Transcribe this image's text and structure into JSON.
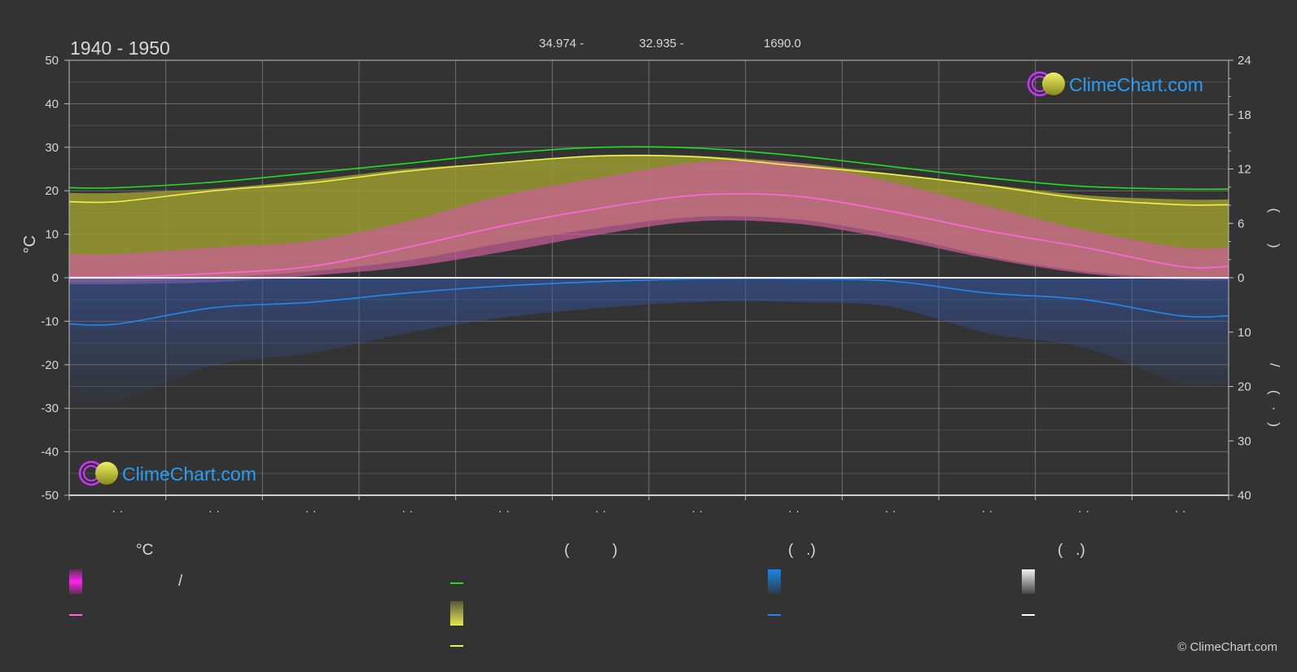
{
  "chart_data": {
    "type": "area",
    "title": "1940 - 1950",
    "header_values": [
      "34.974 -",
      "32.935 -",
      "1690.0"
    ],
    "ylabel": "°C",
    "ylim": [
      -50,
      50
    ],
    "yticks": [
      "50",
      "40",
      "30",
      "20",
      "10",
      "0",
      "-10",
      "-20",
      "-30",
      "-40",
      "-50"
    ],
    "right_axis_top": {
      "range": [
        0,
        24
      ],
      "ticks": [
        "24",
        "18",
        "12",
        "6",
        "0"
      ]
    },
    "right_axis_bottom": {
      "range": [
        0,
        40
      ],
      "ticks": [
        "10",
        "20",
        "30",
        "40"
      ]
    },
    "right_axis_labels": {
      "upper": "(        )",
      "lower": "/      (   ·   )"
    },
    "x_tick_labels": [
      "· ·",
      "· ·",
      "· ·",
      "· ·",
      "· ·",
      "· ·",
      "· ·",
      "· ·",
      "· ·",
      "· ·",
      "· ·",
      "· ·"
    ],
    "grid": true,
    "series": [
      {
        "name": "",
        "color": "#22dd22",
        "values": [
          20.7,
          22.0,
          24.1,
          26.3,
          28.6,
          30.0,
          29.8,
          28.1,
          25.6,
          23.0,
          21.0,
          20.4
        ]
      },
      {
        "name": "",
        "color": "#f0f050",
        "values": [
          17.5,
          20.0,
          21.8,
          24.5,
          26.5,
          28.0,
          27.8,
          25.8,
          23.8,
          21.2,
          18.2,
          16.8
        ]
      },
      {
        "name": "",
        "color": "#ff66dd",
        "values": [
          0.2,
          1.0,
          2.6,
          7.0,
          12.0,
          16.0,
          19.0,
          18.8,
          15.3,
          10.8,
          7.0,
          2.6
        ]
      },
      {
        "name": "",
        "color": "#2288ee",
        "axis": "right_bottom",
        "values": [
          8.5,
          5.5,
          4.5,
          2.8,
          1.5,
          0.7,
          0.2,
          0.2,
          0.6,
          2.8,
          4.0,
          7.0
        ]
      }
    ],
    "bands": [
      {
        "color": "#9a9a30",
        "upper": [
          19.5,
          20.5,
          22.5,
          25.0,
          26.5,
          28.2,
          28.0,
          26.5,
          24.0,
          21.5,
          19.0,
          18.0
        ],
        "lower": [
          -1.0,
          0.0,
          1.5,
          4.0,
          8.0,
          11.5,
          14.0,
          13.5,
          10.0,
          5.0,
          1.5,
          0.0
        ]
      },
      {
        "color": "#cc5f9a",
        "upper": [
          5.5,
          7.0,
          8.5,
          13.0,
          19.0,
          23.0,
          26.5,
          26.5,
          22.0,
          16.5,
          11.0,
          7.0
        ],
        "lower": [
          -1.5,
          -1.0,
          0.5,
          2.5,
          6.0,
          10.0,
          13.0,
          12.5,
          9.0,
          4.5,
          1.0,
          -0.5
        ]
      }
    ],
    "legend": {
      "headers": [
        "°C",
        "(          )",
        "(   .)",
        "(   .)"
      ],
      "entries": [
        {
          "swatch": "gradient",
          "color": "#ff22ee",
          "label": "/"
        },
        {
          "swatch": "line",
          "color": "#ff66dd",
          "label": ""
        },
        {
          "swatch": "line",
          "color": "#22dd22",
          "label": ""
        },
        {
          "swatch": "gradient",
          "color": "#e8e850",
          "label": ""
        },
        {
          "swatch": "line",
          "color": "#f0f050",
          "label": ""
        },
        {
          "swatch": "gradient",
          "color": "#1188ee",
          "label": ""
        },
        {
          "swatch": "line",
          "color": "#2288ee",
          "label": ""
        },
        {
          "swatch": "gradient",
          "color": "#f0f0f0",
          "label": ""
        },
        {
          "swatch": "line",
          "color": "#ffffff",
          "label": ""
        }
      ]
    }
  },
  "logo_text": "ClimeChart.com",
  "copyright": "© ClimeChart.com"
}
